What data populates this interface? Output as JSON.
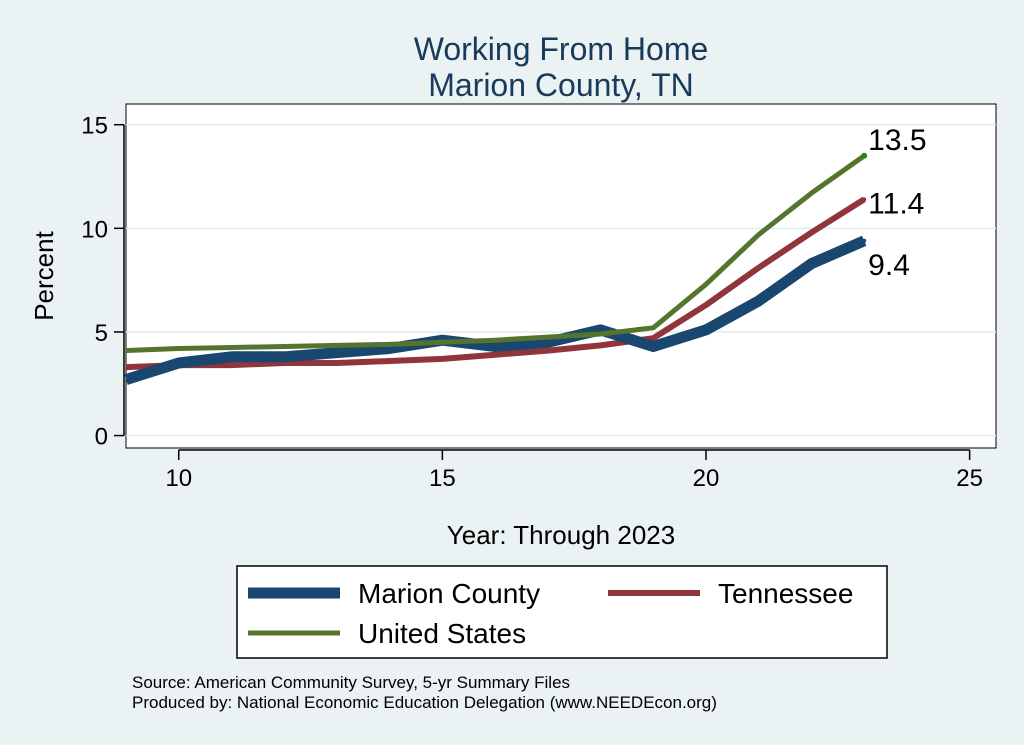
{
  "chart_data": {
    "type": "line",
    "title": [
      "Working From Home",
      "Marion County, TN"
    ],
    "xlabel": "Year: Through 2023",
    "ylabel": "Percent",
    "xlim": [
      9,
      25.5
    ],
    "ylim": [
      -0.6,
      16
    ],
    "xticks": [
      10,
      15,
      20,
      25
    ],
    "yticks": [
      0,
      5,
      10,
      15
    ],
    "grid": true,
    "legend_position": "bottom",
    "series": [
      {
        "name": "Marion County",
        "color": "#1a476f",
        "x": [
          9,
          10,
          11,
          12,
          13,
          14,
          15,
          16,
          17,
          18,
          19,
          20,
          21,
          22,
          23
        ],
        "y": [
          2.7,
          3.5,
          3.8,
          3.8,
          4.0,
          4.2,
          4.6,
          4.3,
          4.5,
          5.1,
          4.3,
          5.1,
          6.5,
          8.3,
          9.4
        ],
        "end_label": "9.4"
      },
      {
        "name": "Tennessee",
        "color": "#90353b",
        "x": [
          9,
          10,
          11,
          12,
          13,
          14,
          15,
          16,
          17,
          18,
          19,
          20,
          21,
          22,
          23
        ],
        "y": [
          3.3,
          3.4,
          3.4,
          3.5,
          3.5,
          3.6,
          3.7,
          3.9,
          4.1,
          4.35,
          4.7,
          6.3,
          8.1,
          9.8,
          11.4
        ],
        "end_label": "11.4"
      },
      {
        "name": "United States",
        "color": "#55752f",
        "x": [
          9,
          10,
          11,
          12,
          13,
          14,
          15,
          16,
          17,
          18,
          19,
          20,
          21,
          22,
          23
        ],
        "y": [
          4.1,
          4.2,
          4.25,
          4.3,
          4.35,
          4.4,
          4.5,
          4.6,
          4.75,
          4.9,
          5.2,
          7.3,
          9.7,
          11.7,
          13.5
        ],
        "end_label": "13.5"
      }
    ],
    "notes": [
      "Source: American Community Survey, 5-yr Summary Files",
      "Produced by: National Economic Education Delegation (www.NEEDEcon.org)"
    ]
  }
}
